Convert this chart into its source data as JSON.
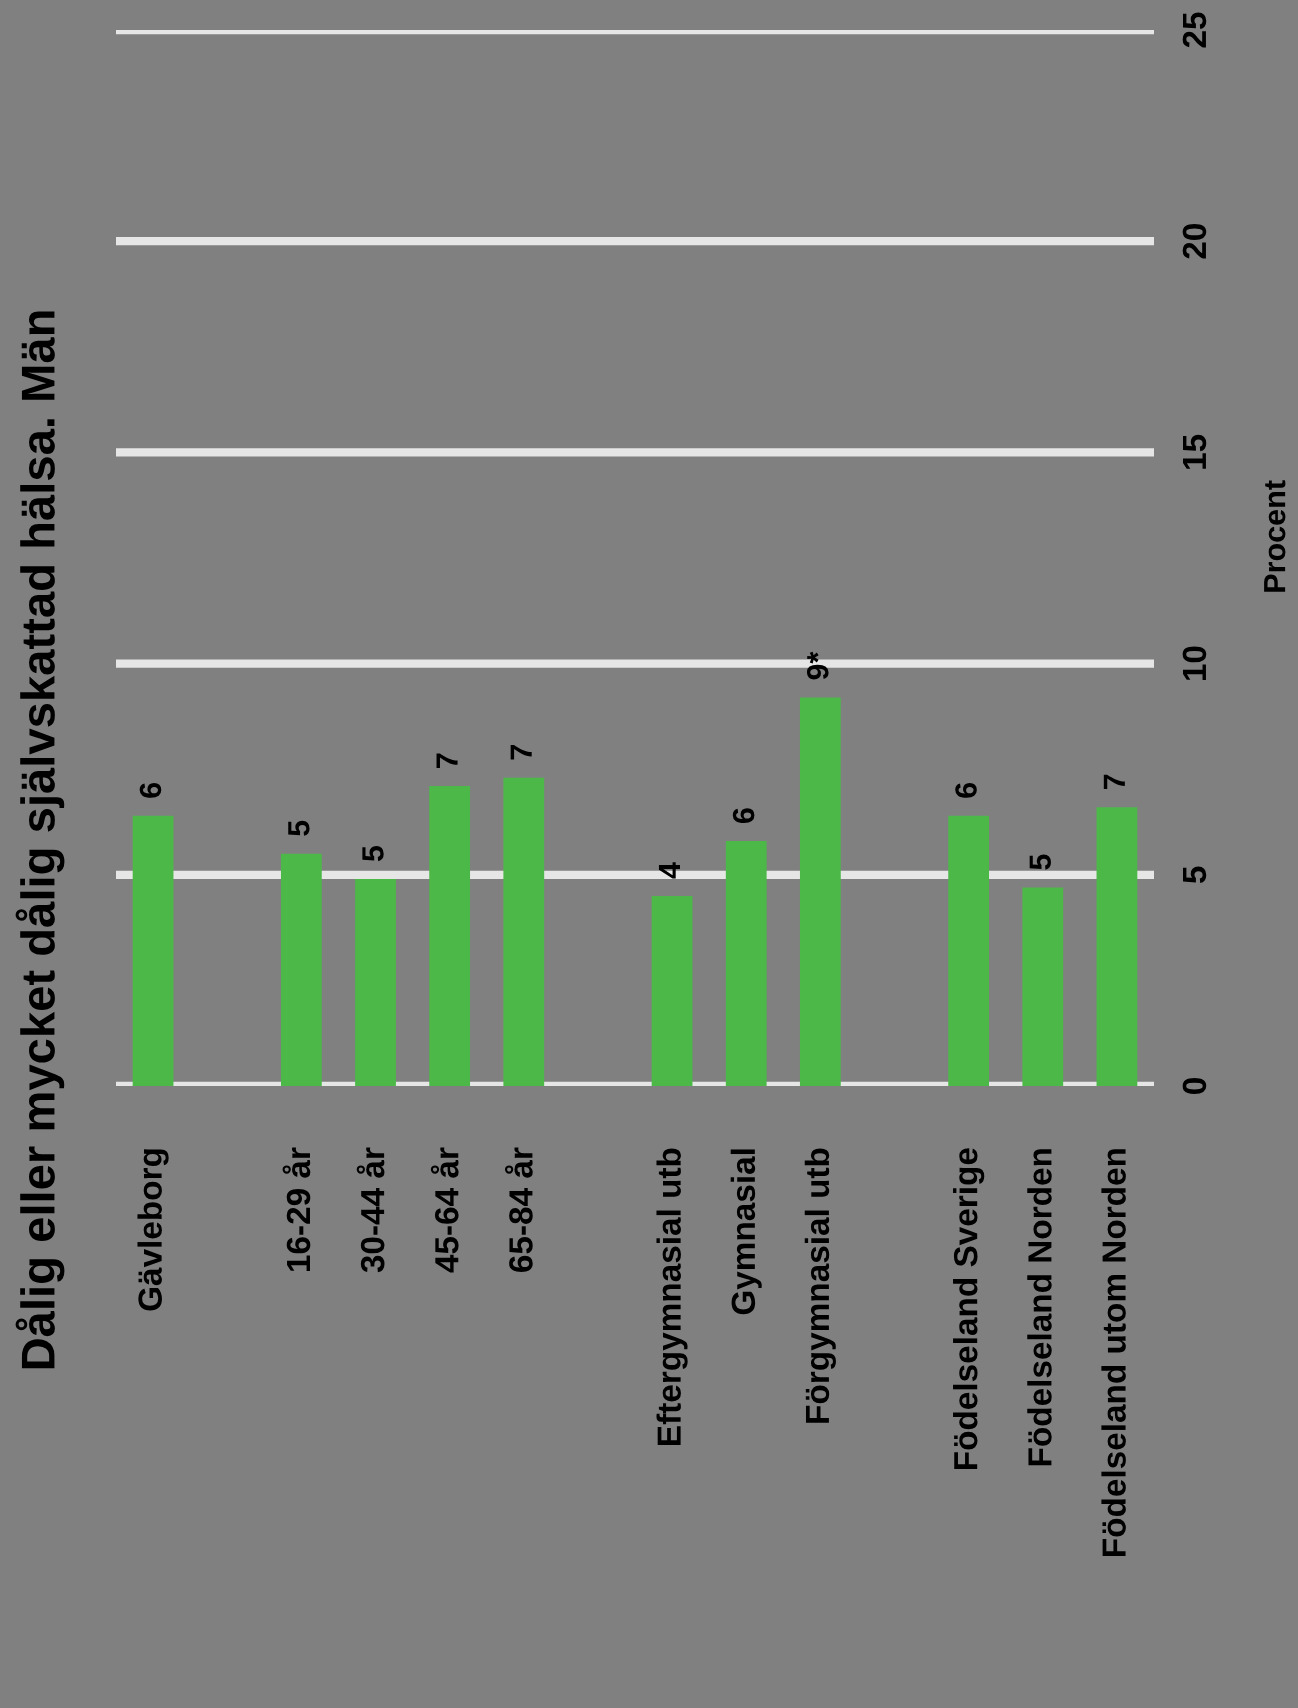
{
  "chart_data": {
    "type": "bar",
    "title": "Dålig eller mycket dålig självskattad hälsa. Män",
    "categories": [
      "Gävleborg",
      null,
      "16-29 år",
      "30-44 år",
      "45-64 år",
      "65-84 år",
      null,
      "Eftergymnasial utb",
      "Gymnasial",
      "Förgymnasial utb",
      null,
      "Födelseland Sverige",
      "Födelseland Norden",
      "Födelseland utom Norden"
    ],
    "values": [
      6.4,
      null,
      5.5,
      4.9,
      7.1,
      7.3,
      null,
      4.5,
      5.8,
      9.2,
      null,
      6.4,
      4.7,
      6.6
    ],
    "value_labels": [
      "6",
      null,
      "5",
      "5",
      "7",
      "7",
      null,
      "4",
      "6",
      "9*",
      null,
      "6",
      "5",
      "7"
    ],
    "color": "#4cb848",
    "ylabel": "Procent",
    "ylim": [
      0,
      25
    ],
    "yticks": [
      0,
      5,
      10,
      15,
      20,
      25
    ],
    "grid": "y"
  }
}
